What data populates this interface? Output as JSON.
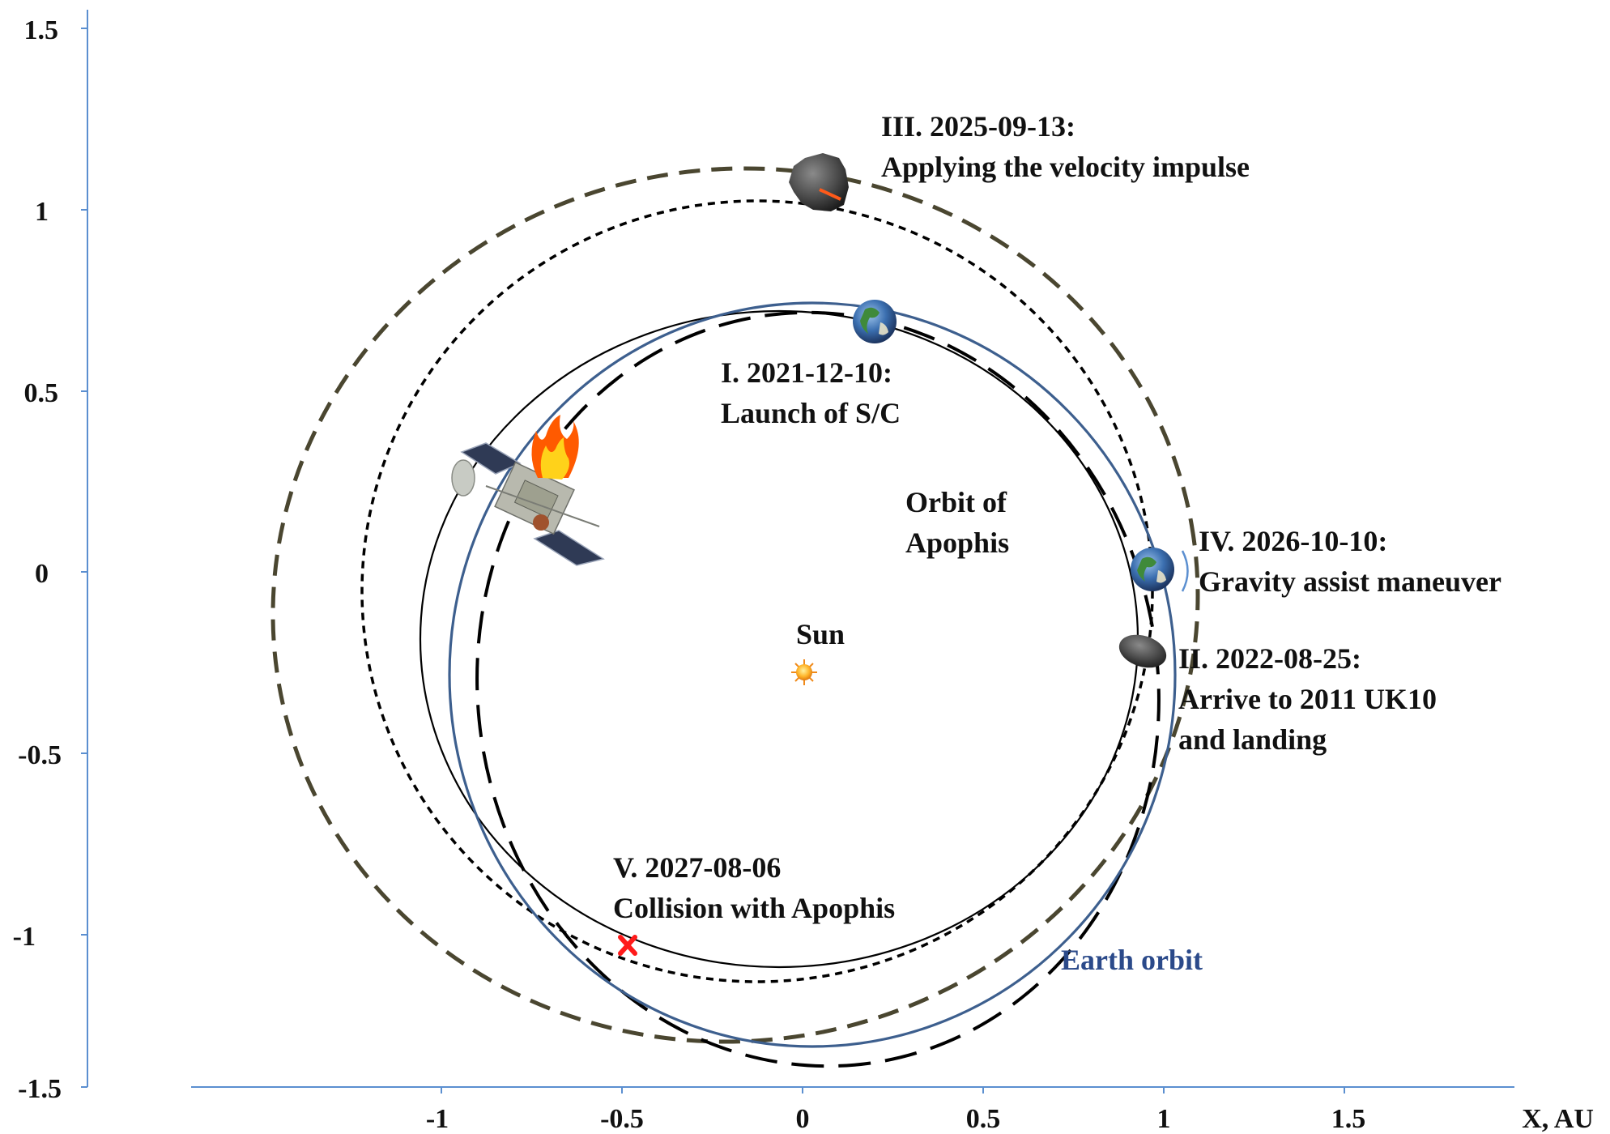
{
  "colors": {
    "axis": "#5b8fd0",
    "earth_orbit": "#3d5f8e",
    "apophis_orbit": "#000000",
    "transfer_short_dash": "#000000",
    "transfer_long_dash": "#000000",
    "outer_orbit": "#4a4630",
    "impact_marker": "#ff1a1a",
    "sun": "#f5a623"
  },
  "axes": {
    "x_ticks": [
      "-1",
      "-0.5",
      "0",
      "0.5",
      "1",
      "1.5"
    ],
    "y_ticks": [
      "1.5",
      "1",
      "0.5",
      "0",
      "-0.5",
      "-1",
      "-1.5"
    ],
    "x_title": "X, AU"
  },
  "labels": {
    "launch_1": "I. 2021-12-10:",
    "launch_2": "Launch of S/C",
    "arrive_1": "II. 2022-08-25:",
    "arrive_2": "Arrive to 2011 UK10",
    "arrive_3": "and landing",
    "impulse_1": "III. 2025-09-13:",
    "impulse_2": "Applying the velocity impulse",
    "gravity_1": "IV. 2026-10-10:",
    "gravity_2": "Gravity assist maneuver",
    "collision_1": "V. 2027-08-06",
    "collision_2": "Collision with Apophis",
    "apophis_1": "Orbit of",
    "apophis_2": "Apophis",
    "sun": "Sun",
    "earth_orbit": "Earth orbit"
  },
  "icons": {
    "spacecraft": "spacecraft-icon",
    "earth": "earth-icon",
    "asteroid": "asteroid-icon",
    "sun": "sun-icon",
    "impact": "impact-x-icon"
  }
}
